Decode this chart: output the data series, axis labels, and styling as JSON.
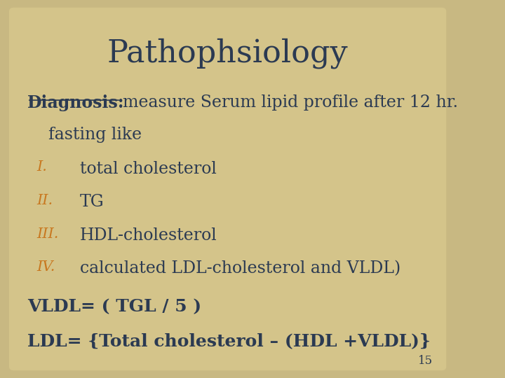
{
  "title": "Pathophsiology",
  "title_color": "#2b3a52",
  "title_fontsize": 32,
  "background_color": "#c8b882",
  "bg_inner_color": "#d4c48a",
  "text_color_dark": "#2b3a52",
  "text_color_orange": "#c87820",
  "diagnosis_label": "Diagnosis:",
  "diagnosis_rest": " measure Serum lipid profile after 12 hr.",
  "fasting_line": "    fasting like",
  "items": [
    {
      "num": "I.",
      "text": "total cholesterol"
    },
    {
      "num": "II.",
      "text": "TG"
    },
    {
      "num": "III.",
      "text": "HDL-cholesterol"
    },
    {
      "num": "IV.",
      "text": "calculated LDL-cholesterol and VLDL)"
    }
  ],
  "formula1": "VLDL= ( TGL / 5 )",
  "formula2": "LDL= {Total cholesterol – (HDL +VLDL)}",
  "page_number": "15",
  "body_fontsize": 17,
  "formula_fontsize": 18,
  "item_fontsize": 17,
  "num_fontsize": 15
}
